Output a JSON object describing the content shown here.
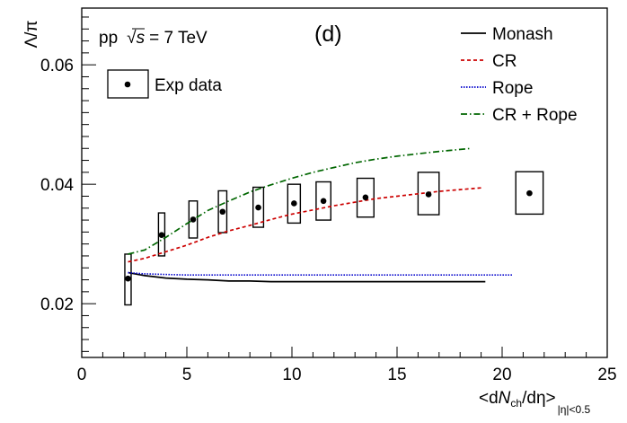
{
  "chart_data": {
    "type": "line",
    "panel_label": "(d)",
    "annotation": {
      "prefix": "pp",
      "sqrt_symbol": "√",
      "sqrt_arg": "s",
      "suffix": "= 7 TeV"
    },
    "ylabel": {
      "main": "Λ/π"
    },
    "xlabel": {
      "lt": "<d",
      "N": "N",
      "ch": "ch",
      "mid": "/dη>",
      "sub": "|η|<0.5"
    },
    "xlim": [
      0,
      25
    ],
    "ylim": [
      0.011,
      0.0695
    ],
    "x_ticks": [
      0,
      5,
      10,
      15,
      20,
      25
    ],
    "x_tick_labels": [
      "0",
      "5",
      "10",
      "15",
      "20",
      "25"
    ],
    "y_ticks": [
      0.02,
      0.04,
      0.06
    ],
    "y_tick_labels": [
      "0.02",
      "0.04",
      "0.06"
    ],
    "grid": false,
    "legend_position": "top-right",
    "exp_legend_label": "Exp data",
    "series": [
      {
        "name": "Monash",
        "color": "#000000",
        "style": "solid",
        "x": [
          2.2,
          3,
          4,
          5,
          6,
          7,
          8,
          9,
          10,
          12,
          14,
          16,
          19.2
        ],
        "y": [
          0.0252,
          0.0247,
          0.0243,
          0.0241,
          0.024,
          0.0238,
          0.0238,
          0.0237,
          0.0237,
          0.0237,
          0.0237,
          0.0237,
          0.0237
        ]
      },
      {
        "name": "CR",
        "color": "#cc0000",
        "style": "dashed",
        "x": [
          2.2,
          3,
          4,
          5,
          6,
          7,
          8,
          9,
          10,
          11,
          12,
          13,
          14,
          15,
          16,
          17,
          18,
          19
        ],
        "y": [
          0.027,
          0.0276,
          0.0287,
          0.0298,
          0.0311,
          0.0322,
          0.0331,
          0.0341,
          0.035,
          0.0357,
          0.0364,
          0.037,
          0.0376,
          0.038,
          0.0384,
          0.0388,
          0.0391,
          0.0394
        ]
      },
      {
        "name": "Rope",
        "color": "#0000cc",
        "style": "dotted",
        "x": [
          2.2,
          3,
          4,
          5,
          6,
          8,
          10,
          12,
          14,
          16,
          18,
          20.5
        ],
        "y": [
          0.0252,
          0.025,
          0.0249,
          0.0248,
          0.0248,
          0.0248,
          0.0248,
          0.0248,
          0.0248,
          0.0248,
          0.0248,
          0.0248
        ]
      },
      {
        "name": "CR + Rope",
        "color": "#006600",
        "style": "dashdot",
        "x": [
          2.2,
          3,
          4,
          5,
          6,
          7,
          8,
          9,
          10,
          11,
          12,
          13,
          14,
          15,
          16,
          17,
          18.5
        ],
        "y": [
          0.0283,
          0.029,
          0.0311,
          0.0334,
          0.0356,
          0.0372,
          0.0387,
          0.0399,
          0.041,
          0.042,
          0.0428,
          0.0436,
          0.0442,
          0.0447,
          0.0451,
          0.0455,
          0.046
        ]
      }
    ],
    "exp_data": [
      {
        "x": 2.2,
        "y": 0.0242,
        "y_low": 0.0198,
        "y_high": 0.0283,
        "half_width": 0.15
      },
      {
        "x": 3.8,
        "y": 0.0315,
        "y_low": 0.028,
        "y_high": 0.0352,
        "half_width": 0.15
      },
      {
        "x": 5.3,
        "y": 0.0341,
        "y_low": 0.031,
        "y_high": 0.0372,
        "half_width": 0.2
      },
      {
        "x": 6.7,
        "y": 0.0354,
        "y_low": 0.0319,
        "y_high": 0.0389,
        "half_width": 0.2
      },
      {
        "x": 8.4,
        "y": 0.0361,
        "y_low": 0.0328,
        "y_high": 0.0395,
        "half_width": 0.25
      },
      {
        "x": 10.1,
        "y": 0.0368,
        "y_low": 0.0335,
        "y_high": 0.04,
        "half_width": 0.3
      },
      {
        "x": 11.5,
        "y": 0.0372,
        "y_low": 0.034,
        "y_high": 0.0404,
        "half_width": 0.35
      },
      {
        "x": 13.5,
        "y": 0.0378,
        "y_low": 0.0345,
        "y_high": 0.041,
        "half_width": 0.4
      },
      {
        "x": 16.5,
        "y": 0.0383,
        "y_low": 0.0349,
        "y_high": 0.042,
        "half_width": 0.5
      },
      {
        "x": 21.3,
        "y": 0.0385,
        "y_low": 0.035,
        "y_high": 0.0421,
        "half_width": 0.65
      }
    ]
  }
}
